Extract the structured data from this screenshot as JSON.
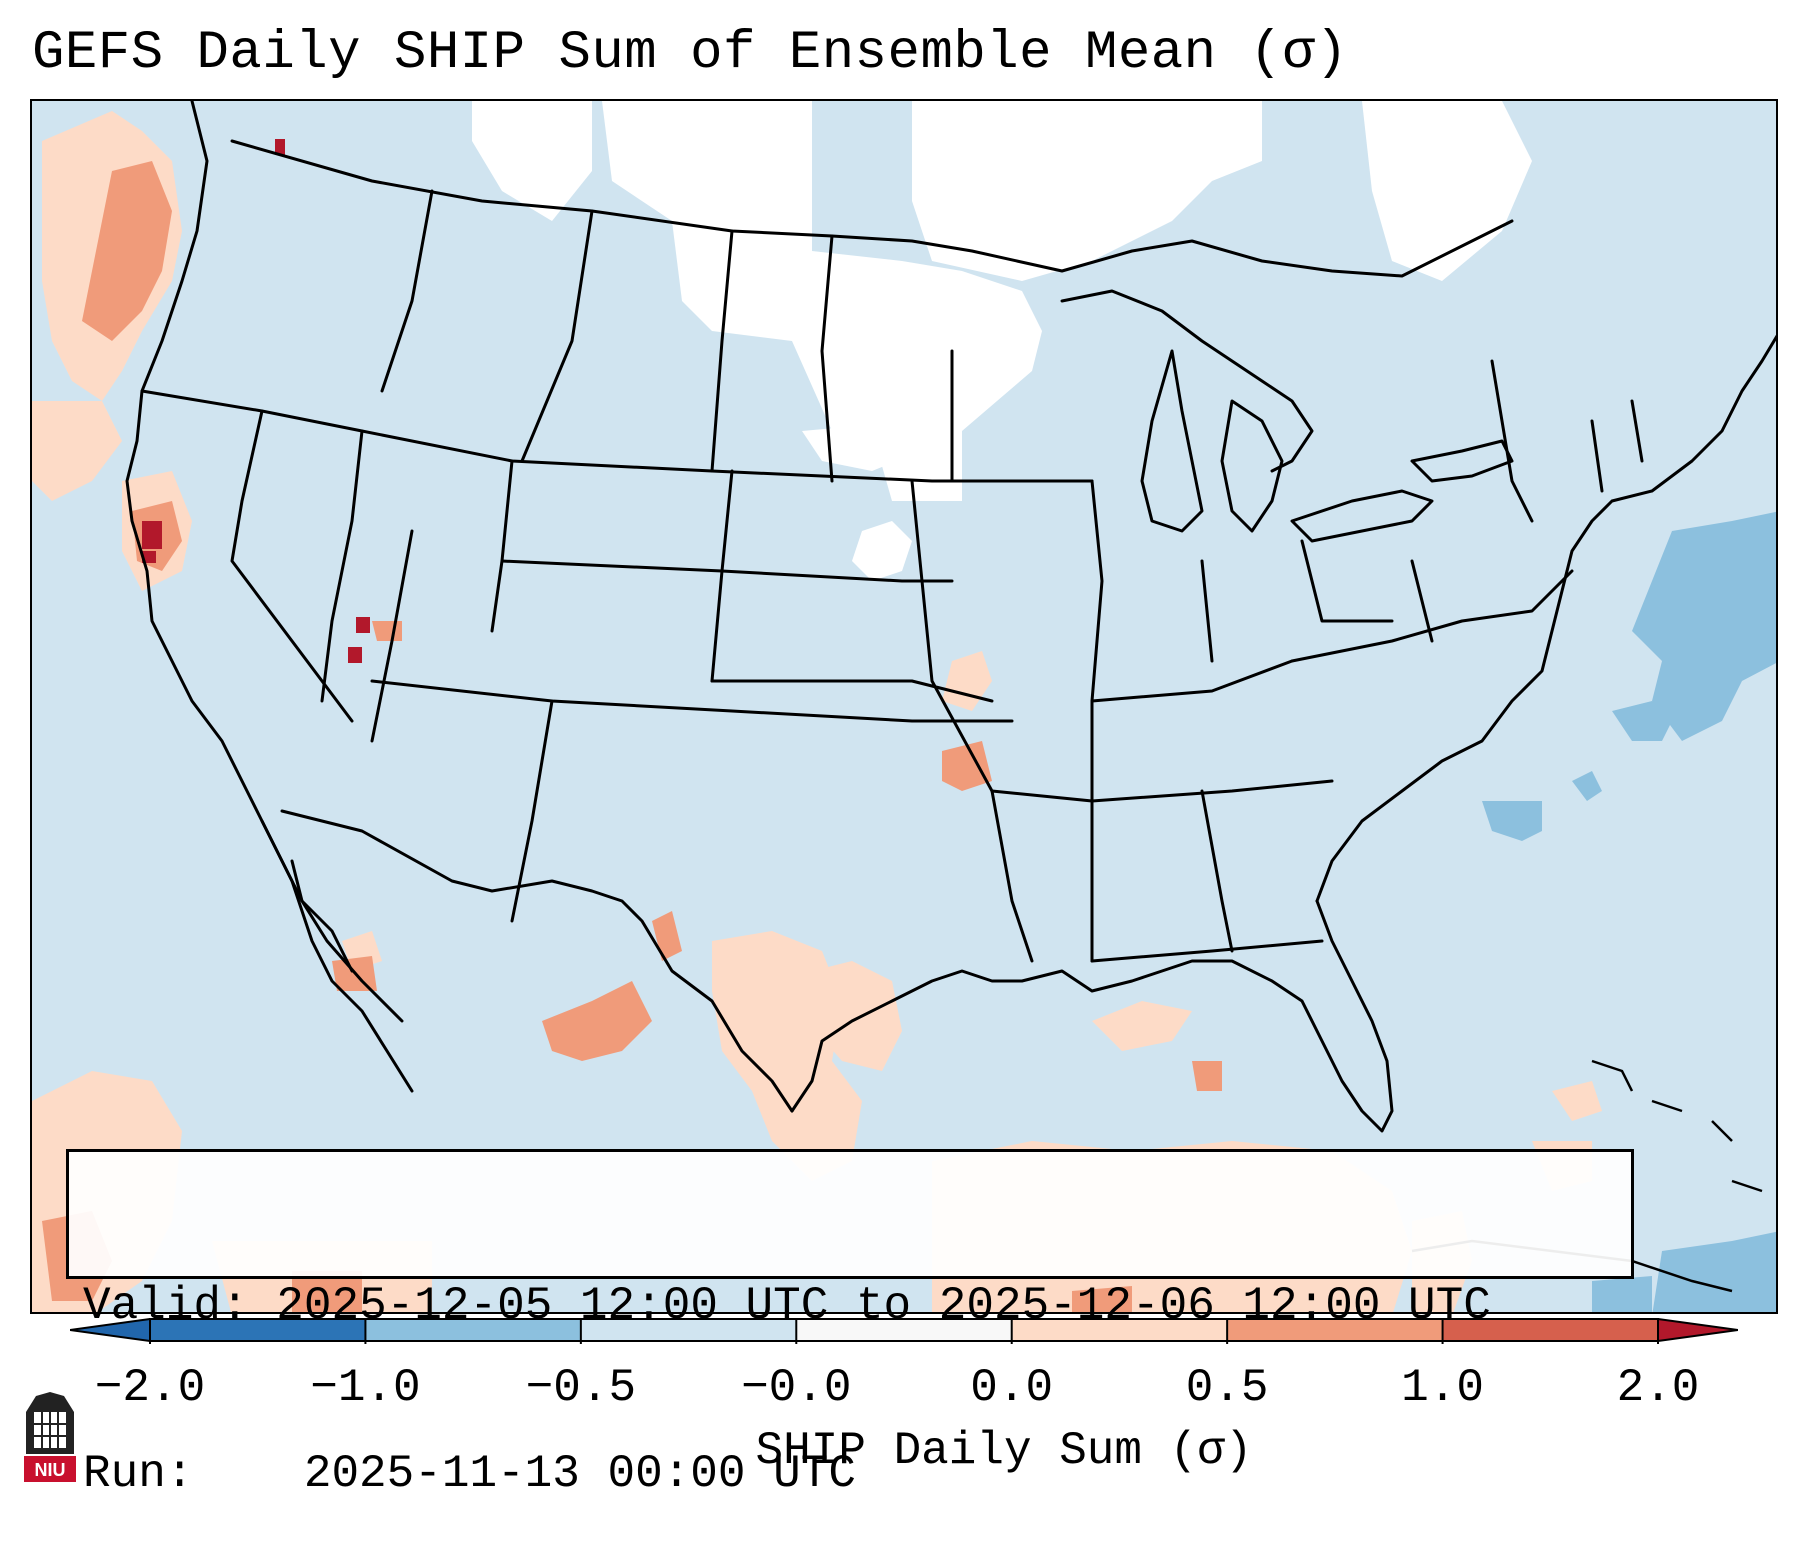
{
  "title": "GEFS Daily SHIP Sum of Ensemble Mean (σ)",
  "info": {
    "valid_label": "Valid:",
    "valid_text": "2025-12-05 12:00 UTC to 2025-12-06 12:00 UTC",
    "run_label": "Run:",
    "run_text": "2025-11-13 00:00 UTC"
  },
  "colorbar": {
    "label": "SHIP Daily Sum (σ)",
    "ticks": [
      "−2.0",
      "−1.0",
      "−0.5",
      "−0.0",
      "0.0",
      "0.5",
      "1.0",
      "2.0"
    ],
    "bins": [
      {
        "color": "#2c74b6"
      },
      {
        "color": "#8cc0de"
      },
      {
        "color": "#d0e4f0"
      },
      {
        "color": "#f8f8f8"
      },
      {
        "color": "#fddbc7"
      },
      {
        "color": "#f09b7a"
      },
      {
        "color": "#d6604d"
      }
    ],
    "under_color": "#2166ac",
    "over_color": "#b2182b"
  },
  "map": {
    "region": "Contiguous United States with northern Mexico and the Gulf of Mexico",
    "ocean_fill": "#d0e4f0",
    "near_zero_fill": "#ffffff",
    "weak_positive_fill": "#fddbc7",
    "moderate_positive_fill": "#f09b7a",
    "strong_positive_fill": "#b2182b",
    "negative_fill": "#8cc0de",
    "border_color": "#000000"
  },
  "logo": {
    "name": "NIU"
  }
}
